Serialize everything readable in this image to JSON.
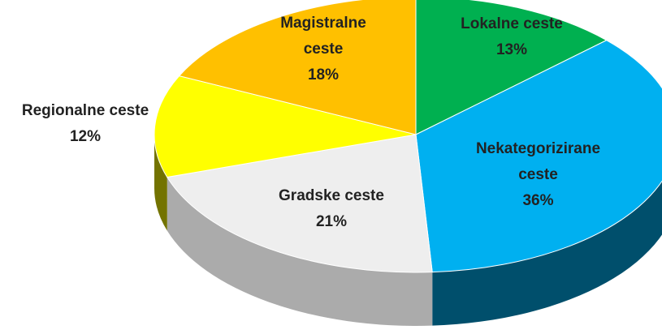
{
  "chart_data": {
    "type": "pie",
    "categories": [
      "Lokalne ceste",
      "Nekategorizirane ceste",
      "Gradske ceste",
      "Regionalne ceste",
      "Magistralne ceste"
    ],
    "values": [
      13,
      36,
      21,
      12,
      18
    ],
    "value_labels": [
      "13%",
      "36%",
      "21%",
      "12%",
      "18%"
    ],
    "colors": [
      "#00b050",
      "#00b0f0",
      "#eeeeee",
      "#ffff00",
      "#ffc000"
    ]
  }
}
